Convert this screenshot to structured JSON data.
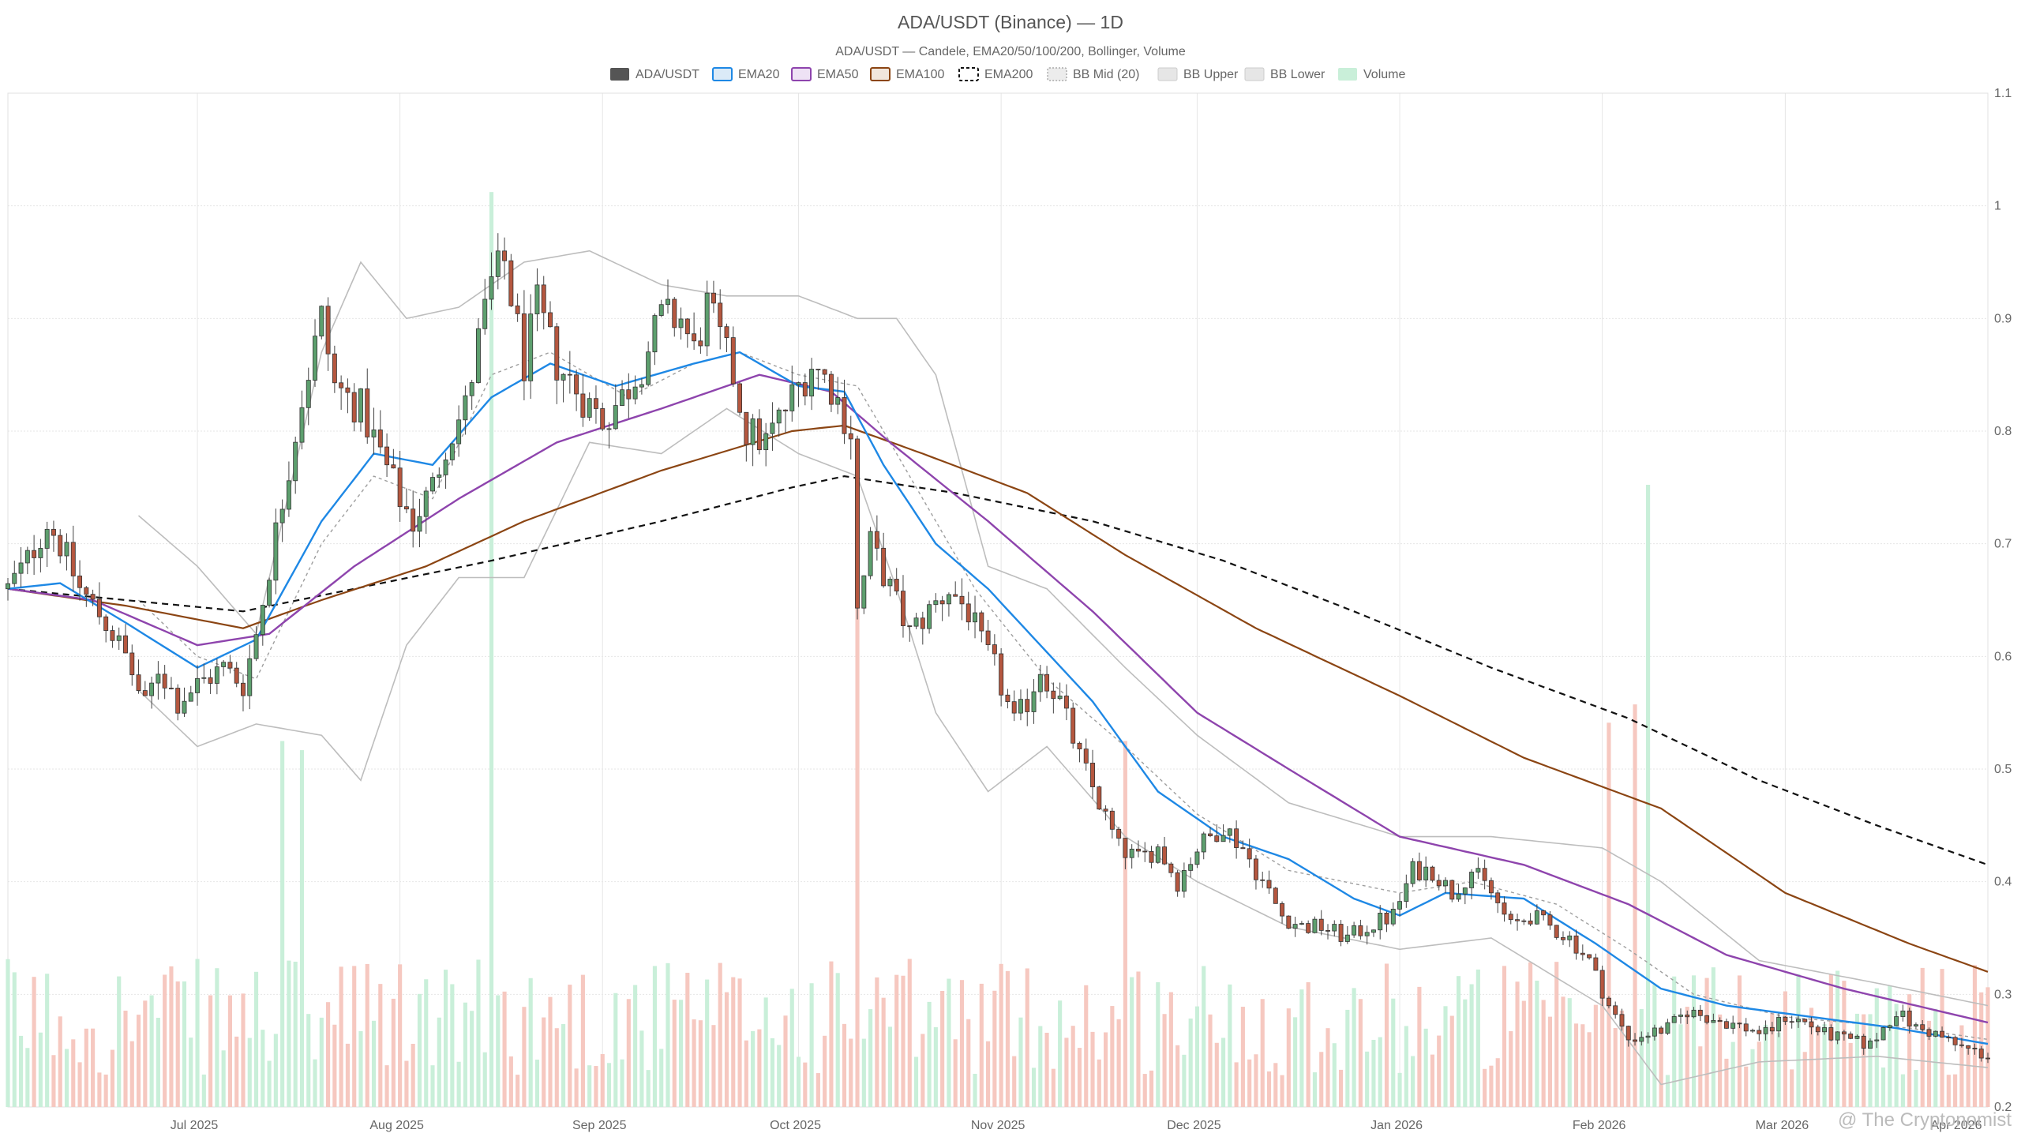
{
  "chart_data": {
    "type": "candlestick",
    "title": "ADA/USDT (Binance) — 1D",
    "subtitle": "ADA/USDT — Candele, EMA20/50/100/200, Bollinger, Volume",
    "legend": [
      {
        "label": "ADA/USDT",
        "color": "#555555",
        "style": "solid-fill"
      },
      {
        "label": "EMA20",
        "color": "#1e88e5",
        "style": "line"
      },
      {
        "label": "EMA50",
        "color": "#8e44ad",
        "style": "line"
      },
      {
        "label": "EMA100",
        "color": "#8b4513",
        "style": "line"
      },
      {
        "label": "EMA200",
        "color": "#111111",
        "style": "dashed"
      },
      {
        "label": "BB Mid (20)",
        "color": "#9e9e9e",
        "style": "dotted"
      },
      {
        "label": "BB Upper",
        "color": "#bdbdbd",
        "style": "line"
      },
      {
        "label": "BB Lower",
        "color": "#bdbdbd",
        "style": "line"
      },
      {
        "label": "Volume",
        "color": "#a8e6c3",
        "style": "solid-fill"
      }
    ],
    "legend_placement": "top-center",
    "x_tick_labels": [
      "Jul 2025",
      "Aug 2025",
      "Sep 2025",
      "Oct 2025",
      "Nov 2025",
      "Dec 2025",
      "Jan 2026",
      "Feb 2026",
      "Mar 2026",
      "Apr 2026"
    ],
    "y_axis": {
      "side": "right",
      "ylim": [
        0.2,
        1.1
      ],
      "ticks": [
        0.2,
        0.3,
        0.4,
        0.5,
        0.6,
        0.7,
        0.8,
        0.9,
        1.0,
        1.1
      ],
      "tick_labels": [
        "0.2",
        "0.3",
        "0.4",
        "0.5",
        "0.6",
        "0.7",
        "0.8",
        "0.9",
        "1",
        "1.1"
      ]
    },
    "x_range": [
      "2025-06-02",
      "2026-04-01"
    ],
    "grid": true,
    "up_color": "#5d9f6e",
    "down_color": "#b5573f",
    "price_path": [
      [
        "2025-06-02",
        0.66
      ],
      [
        "2025-06-05",
        0.685
      ],
      [
        "2025-06-08",
        0.72
      ],
      [
        "2025-06-10",
        0.7
      ],
      [
        "2025-06-13",
        0.66
      ],
      [
        "2025-06-17",
        0.63
      ],
      [
        "2025-06-20",
        0.6
      ],
      [
        "2025-06-23",
        0.555
      ],
      [
        "2025-06-25",
        0.59
      ],
      [
        "2025-06-28",
        0.56
      ],
      [
        "2025-07-01",
        0.575
      ],
      [
        "2025-07-05",
        0.59
      ],
      [
        "2025-07-08",
        0.575
      ],
      [
        "2025-07-10",
        0.62
      ],
      [
        "2025-07-12",
        0.68
      ],
      [
        "2025-07-14",
        0.74
      ],
      [
        "2025-07-17",
        0.83
      ],
      [
        "2025-07-20",
        0.9
      ],
      [
        "2025-07-22",
        0.84
      ],
      [
        "2025-07-26",
        0.82
      ],
      [
        "2025-07-29",
        0.78
      ],
      [
        "2025-08-01",
        0.74
      ],
      [
        "2025-08-03",
        0.72
      ],
      [
        "2025-08-06",
        0.75
      ],
      [
        "2025-08-08",
        0.79
      ],
      [
        "2025-08-11",
        0.82
      ],
      [
        "2025-08-13",
        0.88
      ],
      [
        "2025-08-15",
        0.93
      ],
      [
        "2025-08-17",
        0.95
      ],
      [
        "2025-08-20",
        0.86
      ],
      [
        "2025-08-22",
        0.91
      ],
      [
        "2025-08-25",
        0.86
      ],
      [
        "2025-08-29",
        0.83
      ],
      [
        "2025-09-01",
        0.81
      ],
      [
        "2025-09-04",
        0.83
      ],
      [
        "2025-09-07",
        0.86
      ],
      [
        "2025-09-10",
        0.9
      ],
      [
        "2025-09-13",
        0.9
      ],
      [
        "2025-09-15",
        0.87
      ],
      [
        "2025-09-17",
        0.91
      ],
      [
        "2025-09-21",
        0.85
      ],
      [
        "2025-09-23",
        0.8
      ],
      [
        "2025-09-26",
        0.79
      ],
      [
        "2025-09-29",
        0.82
      ],
      [
        "2025-10-03",
        0.86
      ],
      [
        "2025-10-06",
        0.84
      ],
      [
        "2025-10-09",
        0.8
      ],
      [
        "2025-10-10",
        0.64
      ],
      [
        "2025-10-12",
        0.7
      ],
      [
        "2025-10-15",
        0.66
      ],
      [
        "2025-10-18",
        0.62
      ],
      [
        "2025-10-21",
        0.64
      ],
      [
        "2025-10-24",
        0.66
      ],
      [
        "2025-10-27",
        0.64
      ],
      [
        "2025-10-29",
        0.61
      ],
      [
        "2025-10-31",
        0.59
      ],
      [
        "2025-11-03",
        0.54
      ],
      [
        "2025-11-05",
        0.56
      ],
      [
        "2025-11-07",
        0.59
      ],
      [
        "2025-11-10",
        0.56
      ],
      [
        "2025-11-13",
        0.51
      ],
      [
        "2025-11-16",
        0.47
      ],
      [
        "2025-11-19",
        0.43
      ],
      [
        "2025-11-22",
        0.42
      ],
      [
        "2025-11-25",
        0.43
      ],
      [
        "2025-11-28",
        0.4
      ],
      [
        "2025-12-01",
        0.43
      ],
      [
        "2025-12-05",
        0.45
      ],
      [
        "2025-12-08",
        0.43
      ],
      [
        "2025-12-11",
        0.4
      ],
      [
        "2025-12-14",
        0.37
      ],
      [
        "2025-12-17",
        0.36
      ],
      [
        "2025-12-20",
        0.36
      ],
      [
        "2025-12-24",
        0.35
      ],
      [
        "2025-12-27",
        0.36
      ],
      [
        "2025-12-31",
        0.37
      ],
      [
        "2026-01-03",
        0.41
      ],
      [
        "2026-01-06",
        0.41
      ],
      [
        "2026-01-09",
        0.39
      ],
      [
        "2026-01-12",
        0.41
      ],
      [
        "2026-01-15",
        0.39
      ],
      [
        "2026-01-18",
        0.36
      ],
      [
        "2026-01-21",
        0.37
      ],
      [
        "2026-01-24",
        0.36
      ],
      [
        "2026-01-27",
        0.35
      ],
      [
        "2026-01-30",
        0.33
      ],
      [
        "2026-02-02",
        0.29
      ],
      [
        "2026-02-05",
        0.26
      ],
      [
        "2026-02-08",
        0.265
      ],
      [
        "2026-02-11",
        0.27
      ],
      [
        "2026-02-14",
        0.285
      ],
      [
        "2026-02-17",
        0.28
      ],
      [
        "2026-02-20",
        0.275
      ],
      [
        "2026-02-23",
        0.27
      ],
      [
        "2026-02-26",
        0.265
      ],
      [
        "2026-03-01",
        0.28
      ],
      [
        "2026-03-04",
        0.275
      ],
      [
        "2026-03-07",
        0.265
      ],
      [
        "2026-03-10",
        0.26
      ],
      [
        "2026-03-14",
        0.255
      ],
      [
        "2026-03-18",
        0.285
      ],
      [
        "2026-03-21",
        0.27
      ],
      [
        "2026-03-24",
        0.265
      ],
      [
        "2026-03-27",
        0.255
      ],
      [
        "2026-04-01",
        0.245
      ]
    ],
    "ema20": [
      [
        "2025-06-02",
        0.66
      ],
      [
        "2025-06-10",
        0.665
      ],
      [
        "2025-06-20",
        0.63
      ],
      [
        "2025-07-01",
        0.59
      ],
      [
        "2025-07-10",
        0.615
      ],
      [
        "2025-07-20",
        0.72
      ],
      [
        "2025-07-28",
        0.78
      ],
      [
        "2025-08-06",
        0.77
      ],
      [
        "2025-08-15",
        0.83
      ],
      [
        "2025-08-24",
        0.86
      ],
      [
        "2025-09-03",
        0.84
      ],
      [
        "2025-09-15",
        0.86
      ],
      [
        "2025-09-22",
        0.87
      ],
      [
        "2025-10-01",
        0.84
      ],
      [
        "2025-10-08",
        0.835
      ],
      [
        "2025-10-14",
        0.77
      ],
      [
        "2025-10-22",
        0.7
      ],
      [
        "2025-10-30",
        0.66
      ],
      [
        "2025-11-07",
        0.61
      ],
      [
        "2025-11-15",
        0.56
      ],
      [
        "2025-11-25",
        0.48
      ],
      [
        "2025-12-05",
        0.44
      ],
      [
        "2025-12-15",
        0.42
      ],
      [
        "2025-12-25",
        0.385
      ],
      [
        "2026-01-01",
        0.37
      ],
      [
        "2026-01-08",
        0.39
      ],
      [
        "2026-01-20",
        0.385
      ],
      [
        "2026-01-31",
        0.345
      ],
      [
        "2026-02-10",
        0.305
      ],
      [
        "2026-02-20",
        0.29
      ],
      [
        "2026-03-05",
        0.28
      ],
      [
        "2026-03-18",
        0.27
      ],
      [
        "2026-04-01",
        0.256
      ]
    ],
    "ema50": [
      [
        "2025-06-02",
        0.66
      ],
      [
        "2025-06-15",
        0.65
      ],
      [
        "2025-07-01",
        0.61
      ],
      [
        "2025-07-12",
        0.62
      ],
      [
        "2025-07-25",
        0.68
      ],
      [
        "2025-08-10",
        0.74
      ],
      [
        "2025-08-25",
        0.79
      ],
      [
        "2025-09-10",
        0.82
      ],
      [
        "2025-09-25",
        0.85
      ],
      [
        "2025-10-06",
        0.835
      ],
      [
        "2025-10-15",
        0.79
      ],
      [
        "2025-10-30",
        0.72
      ],
      [
        "2025-11-15",
        0.64
      ],
      [
        "2025-12-01",
        0.55
      ],
      [
        "2025-12-15",
        0.5
      ],
      [
        "2026-01-01",
        0.44
      ],
      [
        "2026-01-20",
        0.415
      ],
      [
        "2026-02-05",
        0.38
      ],
      [
        "2026-02-20",
        0.335
      ],
      [
        "2026-03-10",
        0.305
      ],
      [
        "2026-04-01",
        0.275
      ]
    ],
    "ema100": [
      [
        "2025-06-02",
        0.66
      ],
      [
        "2025-06-20",
        0.645
      ],
      [
        "2025-07-08",
        0.625
      ],
      [
        "2025-07-20",
        0.65
      ],
      [
        "2025-08-05",
        0.68
      ],
      [
        "2025-08-20",
        0.72
      ],
      [
        "2025-09-10",
        0.765
      ],
      [
        "2025-09-30",
        0.8
      ],
      [
        "2025-10-08",
        0.805
      ],
      [
        "2025-10-20",
        0.78
      ],
      [
        "2025-11-05",
        0.745
      ],
      [
        "2025-11-20",
        0.69
      ],
      [
        "2025-12-10",
        0.625
      ],
      [
        "2026-01-01",
        0.565
      ],
      [
        "2026-01-20",
        0.51
      ],
      [
        "2026-02-10",
        0.465
      ],
      [
        "2026-03-01",
        0.39
      ],
      [
        "2026-03-20",
        0.345
      ],
      [
        "2026-04-01",
        0.32
      ]
    ],
    "ema200": [
      [
        "2025-06-02",
        0.66
      ],
      [
        "2025-07-08",
        0.64
      ],
      [
        "2025-07-25",
        0.66
      ],
      [
        "2025-08-15",
        0.685
      ],
      [
        "2025-09-10",
        0.72
      ],
      [
        "2025-09-30",
        0.75
      ],
      [
        "2025-10-08",
        0.76
      ],
      [
        "2025-10-25",
        0.745
      ],
      [
        "2025-11-15",
        0.72
      ],
      [
        "2025-12-05",
        0.685
      ],
      [
        "2025-12-25",
        0.64
      ],
      [
        "2026-01-15",
        0.59
      ],
      [
        "2026-02-05",
        0.545
      ],
      [
        "2026-02-25",
        0.49
      ],
      [
        "2026-03-15",
        0.45
      ],
      [
        "2026-04-01",
        0.415
      ]
    ],
    "bb_upper": [
      [
        "2025-06-22",
        0.725
      ],
      [
        "2025-07-01",
        0.68
      ],
      [
        "2025-07-10",
        0.62
      ],
      [
        "2025-07-20",
        0.87
      ],
      [
        "2025-07-26",
        0.95
      ],
      [
        "2025-08-02",
        0.9
      ],
      [
        "2025-08-10",
        0.91
      ],
      [
        "2025-08-20",
        0.95
      ],
      [
        "2025-08-30",
        0.96
      ],
      [
        "2025-09-10",
        0.93
      ],
      [
        "2025-09-20",
        0.92
      ],
      [
        "2025-10-01",
        0.92
      ],
      [
        "2025-10-10",
        0.9
      ],
      [
        "2025-10-16",
        0.9
      ],
      [
        "2025-10-22",
        0.85
      ],
      [
        "2025-10-30",
        0.68
      ],
      [
        "2025-11-08",
        0.66
      ],
      [
        "2025-11-20",
        0.59
      ],
      [
        "2025-12-01",
        0.53
      ],
      [
        "2025-12-15",
        0.47
      ],
      [
        "2026-01-01",
        0.44
      ],
      [
        "2026-01-15",
        0.44
      ],
      [
        "2026-02-01",
        0.43
      ],
      [
        "2026-02-10",
        0.4
      ],
      [
        "2026-02-25",
        0.33
      ],
      [
        "2026-03-15",
        0.31
      ],
      [
        "2026-04-01",
        0.29
      ]
    ],
    "bb_lower": [
      [
        "2025-06-22",
        0.57
      ],
      [
        "2025-07-01",
        0.52
      ],
      [
        "2025-07-10",
        0.54
      ],
      [
        "2025-07-20",
        0.53
      ],
      [
        "2025-07-26",
        0.49
      ],
      [
        "2025-08-02",
        0.61
      ],
      [
        "2025-08-10",
        0.67
      ],
      [
        "2025-08-20",
        0.67
      ],
      [
        "2025-08-30",
        0.79
      ],
      [
        "2025-09-10",
        0.78
      ],
      [
        "2025-09-20",
        0.82
      ],
      [
        "2025-10-01",
        0.78
      ],
      [
        "2025-10-10",
        0.76
      ],
      [
        "2025-10-16",
        0.66
      ],
      [
        "2025-10-22",
        0.55
      ],
      [
        "2025-10-30",
        0.48
      ],
      [
        "2025-11-08",
        0.52
      ],
      [
        "2025-11-20",
        0.44
      ],
      [
        "2025-12-01",
        0.4
      ],
      [
        "2025-12-15",
        0.36
      ],
      [
        "2026-01-01",
        0.34
      ],
      [
        "2026-01-15",
        0.35
      ],
      [
        "2026-02-01",
        0.29
      ],
      [
        "2026-02-10",
        0.22
      ],
      [
        "2026-02-25",
        0.24
      ],
      [
        "2026-03-15",
        0.245
      ],
      [
        "2026-04-01",
        0.235
      ]
    ],
    "bb_mid": [
      [
        "2025-06-22",
        0.65
      ],
      [
        "2025-07-01",
        0.6
      ],
      [
        "2025-07-10",
        0.58
      ],
      [
        "2025-07-20",
        0.7
      ],
      [
        "2025-07-28",
        0.76
      ],
      [
        "2025-08-06",
        0.74
      ],
      [
        "2025-08-15",
        0.85
      ],
      [
        "2025-08-24",
        0.87
      ],
      [
        "2025-09-05",
        0.83
      ],
      [
        "2025-09-15",
        0.86
      ],
      [
        "2025-09-22",
        0.87
      ],
      [
        "2025-10-01",
        0.85
      ],
      [
        "2025-10-10",
        0.84
      ],
      [
        "2025-10-18",
        0.76
      ],
      [
        "2025-10-28",
        0.66
      ],
      [
        "2025-11-08",
        0.58
      ],
      [
        "2025-11-20",
        0.52
      ],
      [
        "2025-12-01",
        0.46
      ],
      [
        "2025-12-15",
        0.41
      ],
      [
        "2026-01-01",
        0.39
      ],
      [
        "2026-01-12",
        0.4
      ],
      [
        "2026-01-25",
        0.38
      ],
      [
        "2026-02-05",
        0.34
      ],
      [
        "2026-02-15",
        0.3
      ],
      [
        "2026-03-01",
        0.28
      ],
      [
        "2026-03-20",
        0.27
      ],
      [
        "2026-04-01",
        0.26
      ]
    ],
    "volume_spikes": [
      [
        "2025-08-15",
        1.0
      ],
      [
        "2025-10-10",
        0.72
      ],
      [
        "2026-02-08",
        0.68
      ],
      [
        "2026-02-06",
        0.44
      ],
      [
        "2026-02-02",
        0.42
      ],
      [
        "2025-07-14",
        0.4
      ],
      [
        "2025-07-17",
        0.39
      ],
      [
        "2025-11-20",
        0.4
      ]
    ],
    "volume_ylim_fraction_of_plot": 0.95
  },
  "watermark": "@ The Cryptonomist",
  "colors": {
    "grid": "#e6e6e6",
    "axis_text": "#666666",
    "vol_up": "#c9efd9",
    "vol_down": "#f6c8c0"
  }
}
